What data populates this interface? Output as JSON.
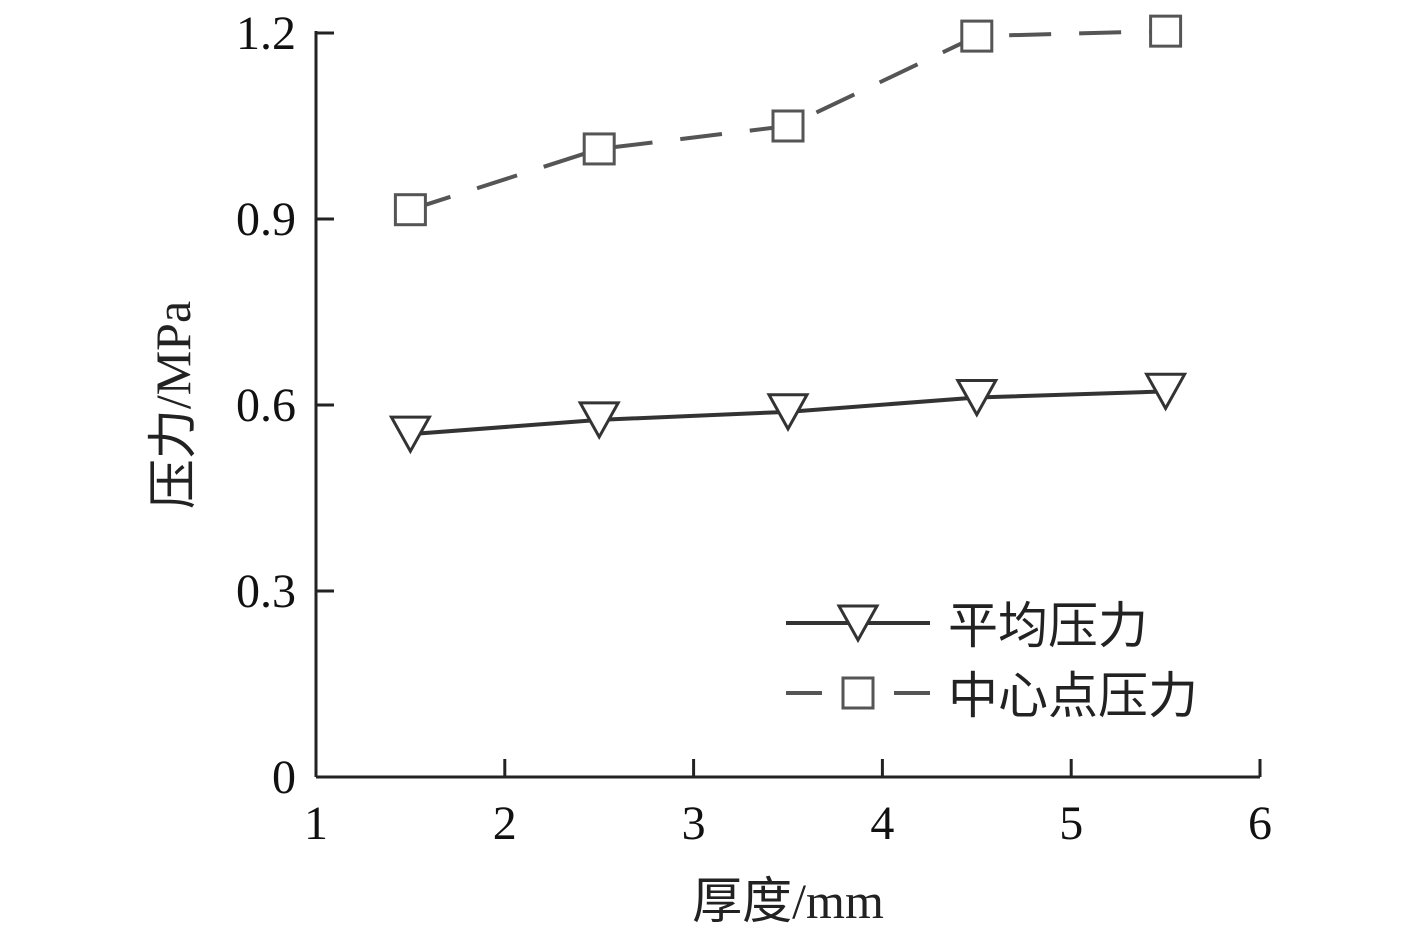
{
  "chart_data": {
    "type": "line",
    "title": "",
    "xlabel": "厚度/mm",
    "ylabel": "压力/MPa",
    "xlim": [
      1,
      6
    ],
    "ylim": [
      0,
      1.2
    ],
    "x_ticks": [
      "1",
      "2",
      "3",
      "4",
      "5",
      "6"
    ],
    "y_ticks": [
      "0",
      "0.3",
      "0.6",
      "0.9",
      "1.2"
    ],
    "x": [
      1.5,
      2.5,
      3.5,
      4.5,
      5.5
    ],
    "grid": false,
    "legend_position": "bottom-right",
    "series": [
      {
        "name": "平均压力",
        "values": [
          0.553,
          0.576,
          0.589,
          0.612,
          0.622
        ],
        "marker": "triangle-down",
        "line_style": "solid",
        "color": "#333333"
      },
      {
        "name": "中心点压力",
        "values": [
          0.915,
          1.013,
          1.05,
          1.195,
          1.203
        ],
        "marker": "square",
        "line_style": "dashed",
        "color": "#555555"
      }
    ]
  }
}
